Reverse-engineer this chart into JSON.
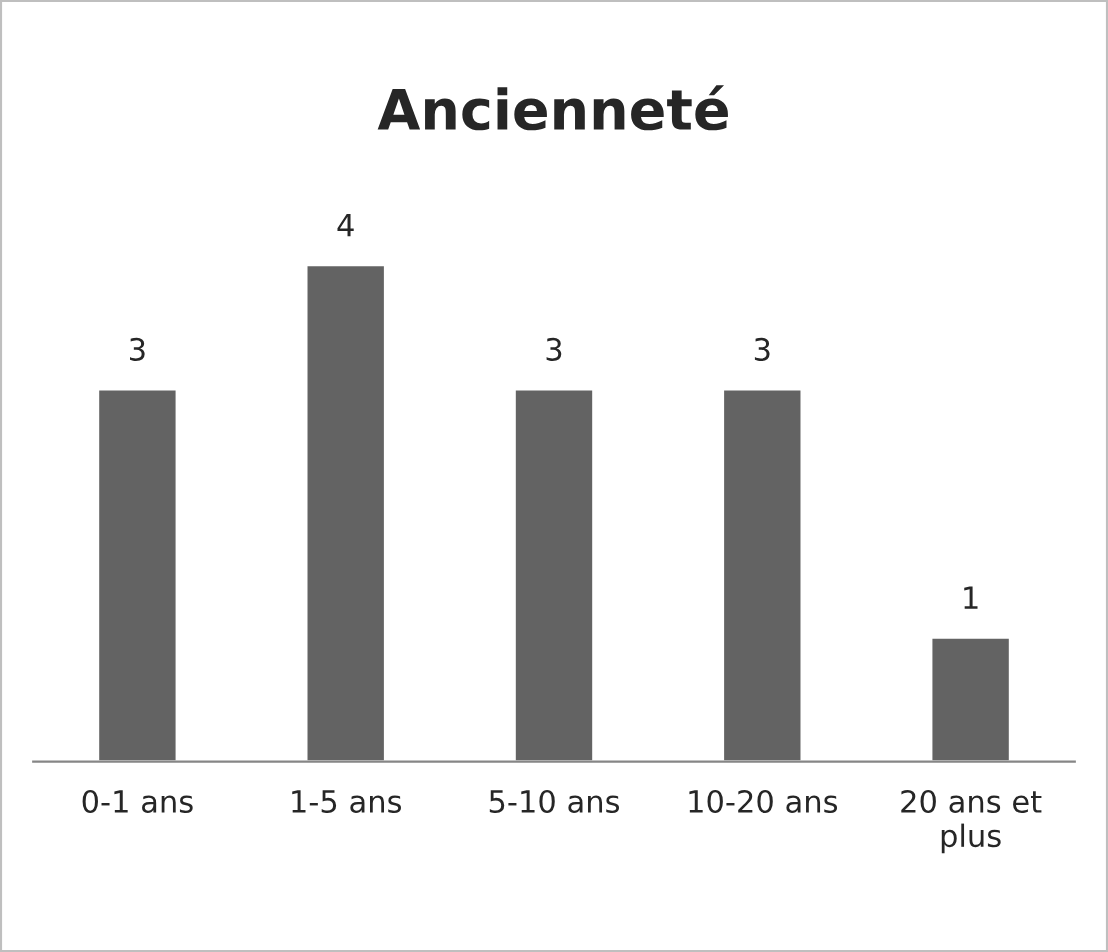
{
  "chart_data": {
    "type": "bar",
    "title": "Ancienneté",
    "categories": [
      "0-1 ans",
      "1-5 ans",
      "5-10 ans",
      "10-20 ans",
      "20 ans et plus"
    ],
    "values": [
      3,
      4,
      3,
      3,
      1
    ],
    "color": "#636363",
    "data_labels": true,
    "grid": false,
    "legend": false
  }
}
